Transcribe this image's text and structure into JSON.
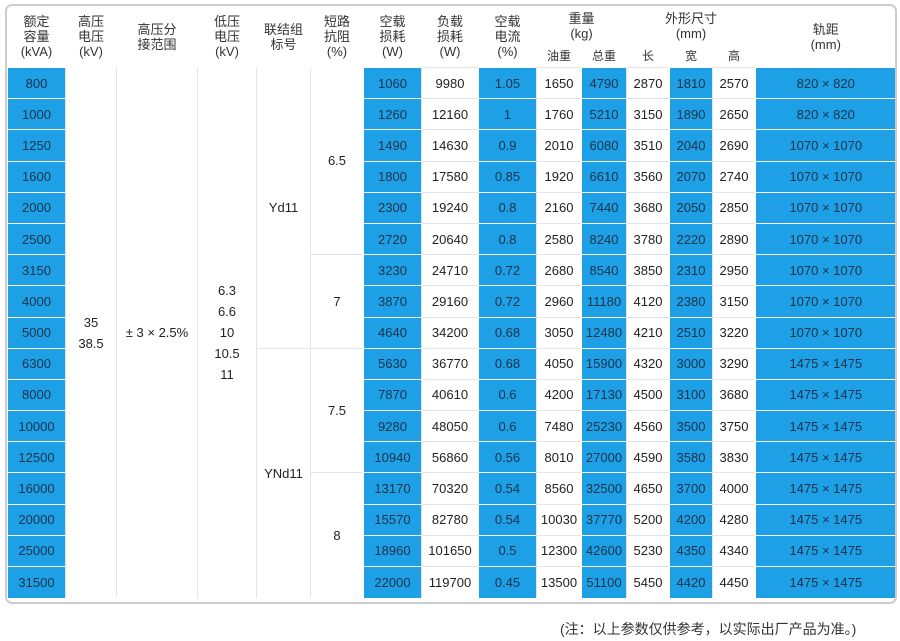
{
  "headers": {
    "capacity": [
      "额定",
      "容量",
      "(kVA)"
    ],
    "hv": [
      "高压",
      "电压",
      "(kV)"
    ],
    "tap": [
      "高压分",
      "接范围"
    ],
    "lv": [
      "低压",
      "电压",
      "(kV)"
    ],
    "vector": [
      "联结组",
      "标号"
    ],
    "impedance": [
      "短路",
      "抗阻",
      "(%)"
    ],
    "noload_loss": [
      "空载",
      "损耗",
      "(W)"
    ],
    "load_loss": [
      "负载",
      "损耗",
      "(W)"
    ],
    "noload_current": [
      "空载",
      "电流",
      "(%)"
    ],
    "weight": [
      "重量",
      "(kg)"
    ],
    "weight_sub": [
      "油重",
      "总重"
    ],
    "dims": [
      "外形尺寸",
      "(mm)"
    ],
    "dims_sub": [
      "长",
      "宽",
      "高"
    ],
    "gauge": [
      "轨距",
      "(mm)"
    ]
  },
  "merged": {
    "hv_values": [
      "35",
      "38.5"
    ],
    "tap_value": "± 3 × 2.5%",
    "lv_values": [
      "6.3",
      "6.6",
      "10",
      "10.5",
      "11"
    ],
    "vector_groups": [
      "Yd11",
      "YNd11"
    ],
    "impedance_groups": [
      "6.5",
      "7",
      "7.5",
      "8"
    ]
  },
  "rows": [
    {
      "cap": "800",
      "nl": "1060",
      "ll": "9980",
      "nc": "1.05",
      "oil": "1650",
      "total": "4790",
      "len": "2870",
      "wid": "1810",
      "hgt": "2570",
      "gauge": "820 × 820"
    },
    {
      "cap": "1000",
      "nl": "1260",
      "ll": "12160",
      "nc": "1",
      "oil": "1760",
      "total": "5210",
      "len": "3150",
      "wid": "1890",
      "hgt": "2650",
      "gauge": "820 × 820"
    },
    {
      "cap": "1250",
      "nl": "1490",
      "ll": "14630",
      "nc": "0.9",
      "oil": "2010",
      "total": "6080",
      "len": "3510",
      "wid": "2040",
      "hgt": "2690",
      "gauge": "1070 × 1070"
    },
    {
      "cap": "1600",
      "nl": "1800",
      "ll": "17580",
      "nc": "0.85",
      "oil": "1920",
      "total": "6610",
      "len": "3560",
      "wid": "2070",
      "hgt": "2740",
      "gauge": "1070 × 1070"
    },
    {
      "cap": "2000",
      "nl": "2300",
      "ll": "19240",
      "nc": "0.8",
      "oil": "2160",
      "total": "7440",
      "len": "3680",
      "wid": "2050",
      "hgt": "2850",
      "gauge": "1070 × 1070"
    },
    {
      "cap": "2500",
      "nl": "2720",
      "ll": "20640",
      "nc": "0.8",
      "oil": "2580",
      "total": "8240",
      "len": "3780",
      "wid": "2220",
      "hgt": "2890",
      "gauge": "1070 × 1070"
    },
    {
      "cap": "3150",
      "nl": "3230",
      "ll": "24710",
      "nc": "0.72",
      "oil": "2680",
      "total": "8540",
      "len": "3850",
      "wid": "2310",
      "hgt": "2950",
      "gauge": "1070 × 1070"
    },
    {
      "cap": "4000",
      "nl": "3870",
      "ll": "29160",
      "nc": "0.72",
      "oil": "2960",
      "total": "11180",
      "len": "4120",
      "wid": "2380",
      "hgt": "3150",
      "gauge": "1070 × 1070"
    },
    {
      "cap": "5000",
      "nl": "4640",
      "ll": "34200",
      "nc": "0.68",
      "oil": "3050",
      "total": "12480",
      "len": "4210",
      "wid": "2510",
      "hgt": "3220",
      "gauge": "1070 × 1070"
    },
    {
      "cap": "6300",
      "nl": "5630",
      "ll": "36770",
      "nc": "0.68",
      "oil": "4050",
      "total": "15900",
      "len": "4320",
      "wid": "3000",
      "hgt": "3290",
      "gauge": "1475 × 1475"
    },
    {
      "cap": "8000",
      "nl": "7870",
      "ll": "40610",
      "nc": "0.6",
      "oil": "4200",
      "total": "17130",
      "len": "4500",
      "wid": "3100",
      "hgt": "3680",
      "gauge": "1475 × 1475"
    },
    {
      "cap": "10000",
      "nl": "9280",
      "ll": "48050",
      "nc": "0.6",
      "oil": "7480",
      "total": "25230",
      "len": "4560",
      "wid": "3500",
      "hgt": "3750",
      "gauge": "1475 × 1475"
    },
    {
      "cap": "12500",
      "nl": "10940",
      "ll": "56860",
      "nc": "0.56",
      "oil": "8010",
      "total": "27000",
      "len": "4590",
      "wid": "3580",
      "hgt": "3830",
      "gauge": "1475 × 1475"
    },
    {
      "cap": "16000",
      "nl": "13170",
      "ll": "70320",
      "nc": "0.54",
      "oil": "8560",
      "total": "32500",
      "len": "4650",
      "wid": "3700",
      "hgt": "4000",
      "gauge": "1475 × 1475"
    },
    {
      "cap": "20000",
      "nl": "15570",
      "ll": "82780",
      "nc": "0.54",
      "oil": "10030",
      "total": "37770",
      "len": "5200",
      "wid": "4200",
      "hgt": "4280",
      "gauge": "1475 × 1475"
    },
    {
      "cap": "25000",
      "nl": "18960",
      "ll": "101650",
      "nc": "0.5",
      "oil": "12300",
      "total": "42600",
      "len": "5230",
      "wid": "4350",
      "hgt": "4340",
      "gauge": "1475 × 1475"
    },
    {
      "cap": "31500",
      "nl": "22000",
      "ll": "119700",
      "nc": "0.45",
      "oil": "13500",
      "total": "51100",
      "len": "5450",
      "wid": "4420",
      "hgt": "4450",
      "gauge": "1475 × 1475"
    }
  ],
  "note": "(注：以上参数仅供参考，以实际出厂产品为准。)",
  "colors": {
    "blue": "#1ea0e6",
    "border": "#c9cdd2"
  }
}
